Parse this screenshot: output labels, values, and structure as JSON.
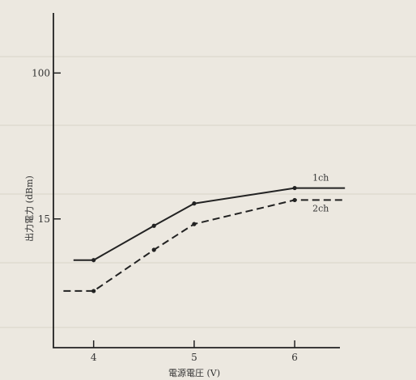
{
  "chart_data": {
    "type": "line",
    "title": "",
    "xlabel": "電源電圧 (V)",
    "ylabel": "出力電力 (dBm)",
    "x_ticks": [
      4,
      5,
      6
    ],
    "y_ticks": [
      15,
      100
    ],
    "xlim": [
      3.6,
      6.45
    ],
    "ylim": [
      -60,
      135
    ],
    "grid": false,
    "series": [
      {
        "name": "1ch",
        "style": "solid",
        "color": "#222222",
        "x": [
          3.8,
          4.0,
          4.6,
          5.0,
          6.0,
          6.5
        ],
        "y": [
          -9,
          -9,
          11,
          24,
          33,
          33
        ]
      },
      {
        "name": "2ch",
        "style": "dashed",
        "color": "#222222",
        "x": [
          3.7,
          4.0,
          4.6,
          5.0,
          6.0,
          6.5
        ],
        "y": [
          -27,
          -27,
          -3,
          12,
          26,
          26
        ]
      }
    ]
  }
}
